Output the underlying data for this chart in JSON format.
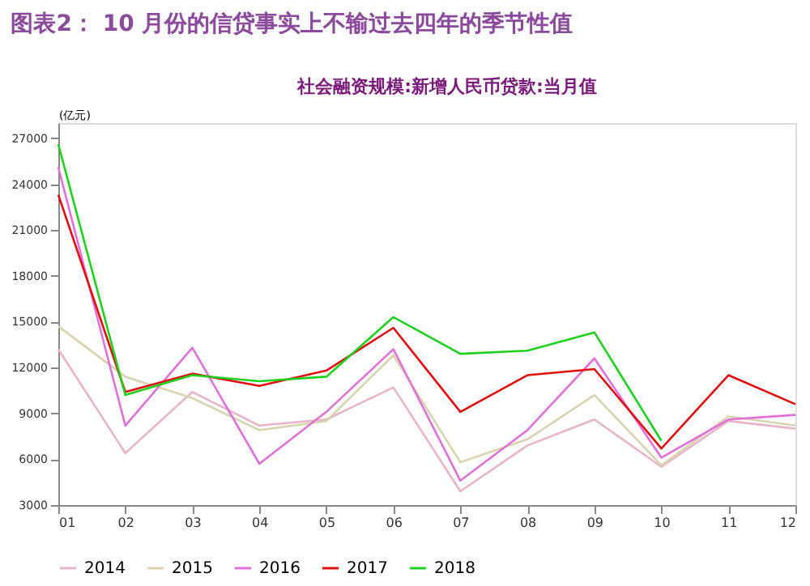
{
  "chart_data": {
    "type": "line",
    "title": "图表2：  10 月份的信贷事实上不输过去四年的季节性值",
    "subtitle": "社会融资规模:新增人民币贷款:当月值",
    "ylabel": "(亿元)",
    "categories": [
      "01",
      "02",
      "03",
      "04",
      "05",
      "06",
      "07",
      "08",
      "09",
      "10",
      "11",
      "12"
    ],
    "series": [
      {
        "name": "2014",
        "color": "#e8b4c8",
        "values": [
          13200,
          6400,
          10400,
          8200,
          8600,
          10700,
          3900,
          6900,
          8600,
          5500,
          8500,
          8000
        ]
      },
      {
        "name": "2015",
        "color": "#d8d4b0",
        "values": [
          14700,
          11400,
          10000,
          7900,
          8500,
          12800,
          5800,
          7300,
          10200,
          5600,
          8800,
          8200
        ]
      },
      {
        "name": "2016",
        "color": "#e070d8",
        "values": [
          25100,
          8200,
          13300,
          5700,
          9100,
          13200,
          4600,
          7900,
          12600,
          6100,
          8600,
          8900
        ]
      },
      {
        "name": "2017",
        "color": "#e01010",
        "values": [
          23300,
          10400,
          11600,
          10800,
          11800,
          14600,
          9100,
          11500,
          11900,
          6700,
          11500,
          9600
        ]
      },
      {
        "name": "2018",
        "color": "#20d020",
        "values": [
          26600,
          10200,
          11500,
          11100,
          11400,
          15300,
          12900,
          13100,
          14300,
          7200,
          null,
          null
        ]
      }
    ],
    "ylim": [
      3000,
      28000
    ],
    "yticks": [
      3000,
      6000,
      9000,
      12000,
      15000,
      18000,
      21000,
      24000,
      27000
    ],
    "grid": false,
    "legend": "bottom",
    "marker": "none",
    "line_style": "solid"
  }
}
